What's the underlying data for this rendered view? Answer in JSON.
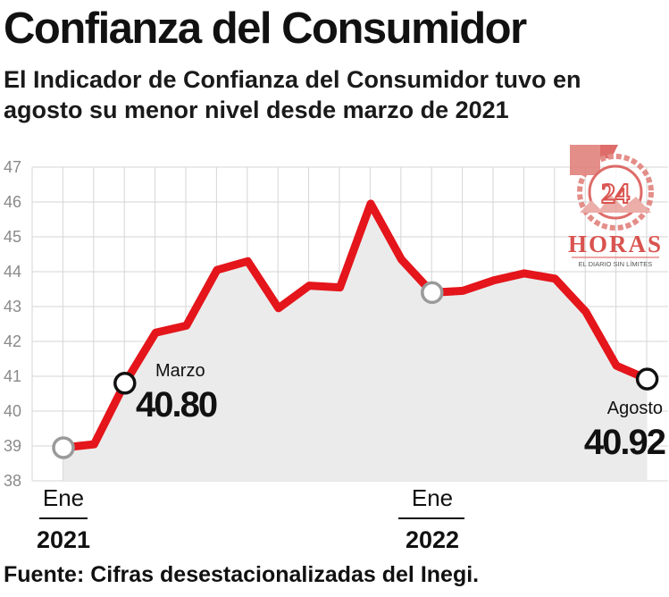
{
  "title": "Confianza del Consumidor",
  "subtitle_line1": "El Indicador de Confianza del Consumidor tuvo en",
  "subtitle_line2": "agosto su menor nivel desde marzo de 2021",
  "source": "Fuente: Cifras desestacionalizadas del Inegi.",
  "logo": {
    "number": "24",
    "word": "HORAS",
    "tagline": "EL DIARIO SIN LÍMITES"
  },
  "colors": {
    "line": "#e4151b",
    "area": "#ebebeb",
    "logo": "#d9534f"
  },
  "chart_data": {
    "type": "area",
    "x": [
      "2021-01",
      "2021-02",
      "2021-03",
      "2021-04",
      "2021-05",
      "2021-06",
      "2021-07",
      "2021-08",
      "2021-09",
      "2021-10",
      "2021-11",
      "2021-12",
      "2022-01",
      "2022-02",
      "2022-03",
      "2022-04",
      "2022-05",
      "2022-06",
      "2022-07",
      "2022-08"
    ],
    "series": [
      {
        "values": [
          38.95,
          39.05,
          40.8,
          42.25,
          42.45,
          44.05,
          44.3,
          42.95,
          43.6,
          43.55,
          45.95,
          44.35,
          43.4,
          43.45,
          43.75,
          43.95,
          43.8,
          42.85,
          41.3,
          40.92
        ]
      }
    ],
    "ylim": [
      38,
      47
    ],
    "yticks": [
      "38",
      "39",
      "40",
      "41",
      "42",
      "43",
      "44",
      "45",
      "46",
      "47"
    ],
    "grid": true,
    "xlabels": [
      {
        "month": "Ene",
        "year": "2021"
      },
      {
        "month": "Ene",
        "year": "2022"
      }
    ],
    "annotations": [
      {
        "label": "Marzo",
        "value": "40.80"
      },
      {
        "label": "Agosto",
        "value": "40.92"
      }
    ]
  }
}
